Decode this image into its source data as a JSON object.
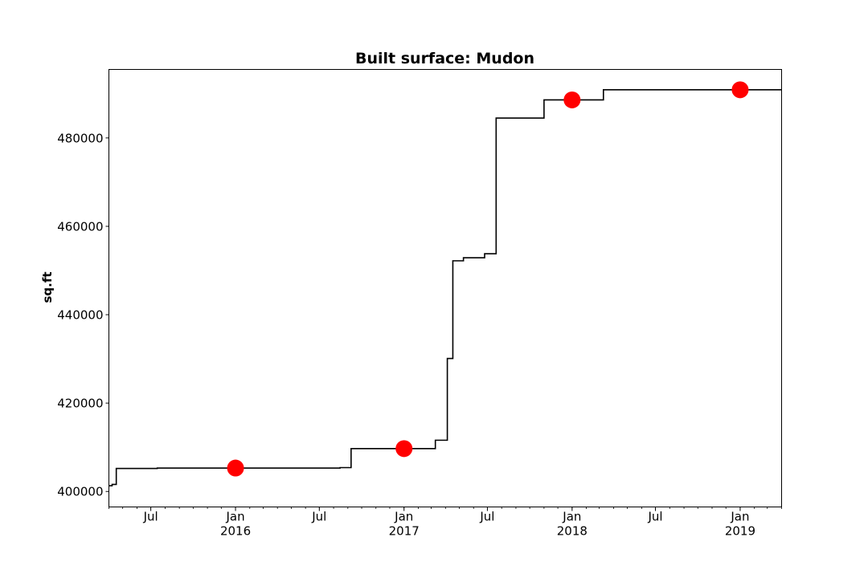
{
  "chart_data": {
    "type": "line",
    "title": "Built surface: Mudon",
    "xlabel": "",
    "ylabel": "sq.ft",
    "grid": false,
    "xlim": [
      "2015-04-01",
      "2019-04-01"
    ],
    "ylim": [
      396500,
      495500
    ],
    "y_ticks": [
      400000,
      420000,
      440000,
      460000,
      480000
    ],
    "y_tick_labels": [
      "400000",
      "420000",
      "440000",
      "460000",
      "480000"
    ],
    "x_ticks": [
      {
        "date": "2015-07-01",
        "label": "Jul",
        "sublabel": ""
      },
      {
        "date": "2016-01-01",
        "label": "Jan",
        "sublabel": "2016"
      },
      {
        "date": "2016-07-01",
        "label": "Jul",
        "sublabel": ""
      },
      {
        "date": "2017-01-01",
        "label": "Jan",
        "sublabel": "2017"
      },
      {
        "date": "2017-07-01",
        "label": "Jul",
        "sublabel": ""
      },
      {
        "date": "2018-01-01",
        "label": "Jan",
        "sublabel": "2018"
      },
      {
        "date": "2018-07-01",
        "label": "Jul",
        "sublabel": ""
      },
      {
        "date": "2019-01-01",
        "label": "Jan",
        "sublabel": "2019"
      }
    ],
    "series": [
      {
        "kind": "step-line",
        "color": "#000000",
        "points": [
          {
            "x": "2015-04-01",
            "y": 401300
          },
          {
            "x": "2015-04-08",
            "y": 401600
          },
          {
            "x": "2015-04-17",
            "y": 405200
          },
          {
            "x": "2015-07-15",
            "y": 405300
          },
          {
            "x": "2016-08-15",
            "y": 405400
          },
          {
            "x": "2016-09-08",
            "y": 409700
          },
          {
            "x": "2017-03-10",
            "y": 411600
          },
          {
            "x": "2017-04-05",
            "y": 430100
          },
          {
            "x": "2017-04-17",
            "y": 452200
          },
          {
            "x": "2017-05-10",
            "y": 452900
          },
          {
            "x": "2017-06-25",
            "y": 453800
          },
          {
            "x": "2017-07-20",
            "y": 484500
          },
          {
            "x": "2017-11-01",
            "y": 488600
          },
          {
            "x": "2018-03-10",
            "y": 490900
          },
          {
            "x": "2019-04-01",
            "y": 490900
          }
        ]
      },
      {
        "kind": "markers",
        "color": "#ff0000",
        "points": [
          {
            "x": "2016-01-01",
            "y": 405300
          },
          {
            "x": "2017-01-01",
            "y": 409700
          },
          {
            "x": "2018-01-01",
            "y": 488600
          },
          {
            "x": "2019-01-01",
            "y": 490900
          }
        ]
      }
    ]
  }
}
